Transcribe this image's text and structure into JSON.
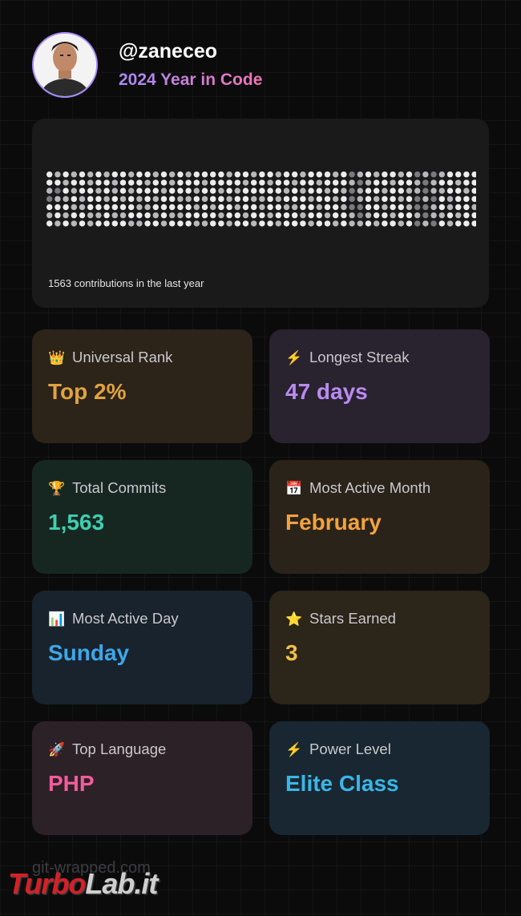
{
  "profile": {
    "username": "@zaneceo",
    "subtitle": "2024 Year in Code"
  },
  "contributions": {
    "caption": "1563 contributions in the last year",
    "grid": {
      "rows": 7,
      "columns": 53,
      "levels_by_week": [
        "4432434",
        "3423443",
        "4343434",
        "3434343",
        "4443344",
        "3344433",
        "4434434",
        "3443444",
        "4334434",
        "4443434",
        "3434443",
        "4443343",
        "4344344",
        "3443434",
        "4434443",
        "3344434",
        "4443434",
        "3443444",
        "4434343",
        "4343443",
        "4444344",
        "4434434",
        "3443443",
        "4434344",
        "4344434",
        "3443443",
        "4443344",
        "4344434",
        "3443443",
        "4434344",
        "4344344",
        "3434434",
        "4443443",
        "4344344",
        "4434434",
        "3443443",
        "4434344",
        "2322233",
        "3233223",
        "4344434",
        "3443443",
        "4434344",
        "4344434",
        "3443443",
        "4434344",
        "2332232",
        "3223223",
        "2332332",
        "3434434",
        "4443343",
        "4344434",
        "4434444",
        "4444344"
      ],
      "colors": [
        "#2a2a2c",
        "#4a4a4d",
        "#7a7a7e",
        "#b8b8bb",
        "#ececec"
      ]
    }
  },
  "stats": [
    {
      "icon": "crown-icon",
      "glyph": "👑",
      "label": "Universal Rank",
      "value": "Top 2%",
      "accent": "#e0a340",
      "bg": "#2c2319"
    },
    {
      "icon": "lightning-icon",
      "glyph": "⚡",
      "label": "Longest Streak",
      "value": "47 days",
      "accent": "#b98bf0",
      "bg": "#29222f"
    },
    {
      "icon": "trophy-icon",
      "glyph": "🏆",
      "label": "Total Commits",
      "value": "1,563",
      "accent": "#3ecfb0",
      "bg": "#162722"
    },
    {
      "icon": "calendar-icon",
      "glyph": "📅",
      "label": "Most Active Month",
      "value": "February",
      "accent": "#f2a23e",
      "bg": "#2a231a"
    },
    {
      "icon": "chart-icon",
      "glyph": "📊",
      "label": "Most Active Day",
      "value": "Sunday",
      "accent": "#3ea6ea",
      "bg": "#18232d"
    },
    {
      "icon": "star-icon",
      "glyph": "⭐",
      "label": "Stars Earned",
      "value": "3",
      "accent": "#eec049",
      "bg": "#2b251a"
    },
    {
      "icon": "rocket-icon",
      "glyph": "🚀",
      "label": "Top Language",
      "value": "PHP",
      "accent": "#f25b9c",
      "bg": "#2c2126"
    },
    {
      "icon": "lightning-icon",
      "glyph": "⚡",
      "label": "Power Level",
      "value": "Elite Class",
      "accent": "#3ab6e8",
      "bg": "#182731"
    }
  ],
  "footer": {
    "site": "git-wrapped.com",
    "watermark_part1": "Turbo",
    "watermark_part2": "Lab.it"
  }
}
